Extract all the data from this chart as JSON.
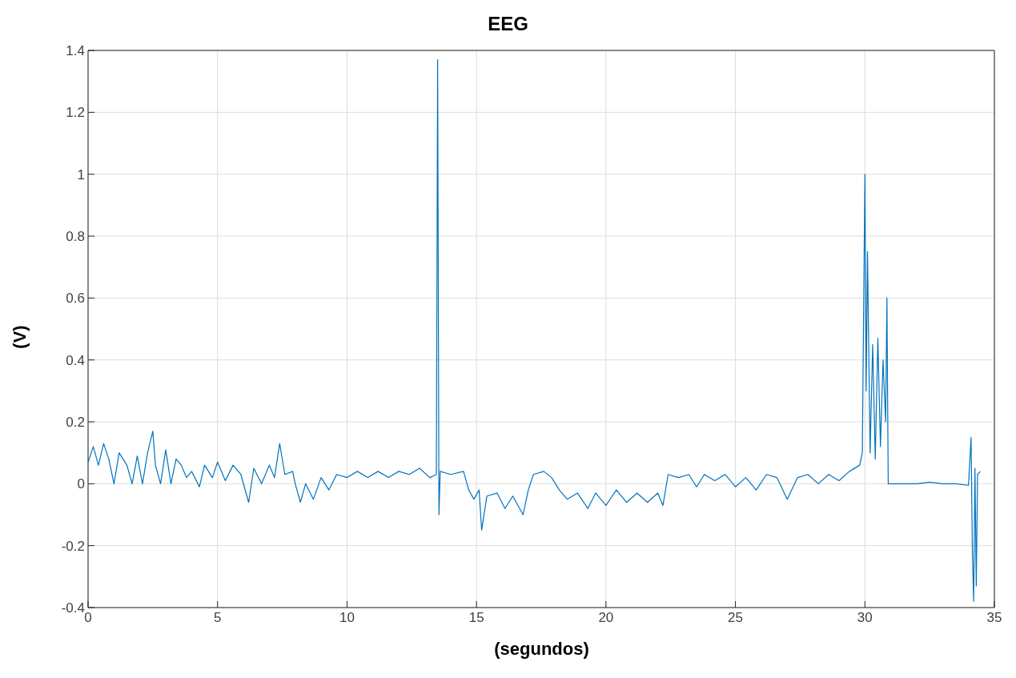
{
  "chart_data": {
    "type": "line",
    "title": "EEG",
    "xlabel": "(segundos)",
    "ylabel": "(V)",
    "x": [
      0,
      0.2,
      0.4,
      0.6,
      0.8,
      1.0,
      1.2,
      1.5,
      1.7,
      1.9,
      2.1,
      2.3,
      2.5,
      2.6,
      2.8,
      3.0,
      3.2,
      3.4,
      3.6,
      3.8,
      4.0,
      4.3,
      4.5,
      4.8,
      5.0,
      5.3,
      5.6,
      5.9,
      6.2,
      6.4,
      6.7,
      7.0,
      7.2,
      7.4,
      7.6,
      7.9,
      8.0,
      8.2,
      8.4,
      8.7,
      9.0,
      9.3,
      9.6,
      10.0,
      10.4,
      10.8,
      11.2,
      11.6,
      12.0,
      12.4,
      12.8,
      13.2,
      13.45,
      13.5,
      13.55,
      13.6,
      14.0,
      14.5,
      14.7,
      14.9,
      15.1,
      15.2,
      15.4,
      15.8,
      16.1,
      16.4,
      16.8,
      17.0,
      17.2,
      17.6,
      17.9,
      18.2,
      18.5,
      18.9,
      19.3,
      19.6,
      20.0,
      20.4,
      20.8,
      21.2,
      21.6,
      22.0,
      22.2,
      22.4,
      22.8,
      23.2,
      23.5,
      23.8,
      24.2,
      24.6,
      25.0,
      25.4,
      25.8,
      26.2,
      26.6,
      27.0,
      27.4,
      27.8,
      28.2,
      28.6,
      29.0,
      29.4,
      29.8,
      29.9,
      30.0,
      30.05,
      30.1,
      30.2,
      30.3,
      30.4,
      30.5,
      30.6,
      30.7,
      30.8,
      30.85,
      30.9,
      31.5,
      32.0,
      32.5,
      33.0,
      33.5,
      34.0,
      34.1,
      34.15,
      34.2,
      34.25,
      34.3,
      34.35,
      34.45
    ],
    "series": [
      {
        "color": "#0072bd",
        "values": [
          0.07,
          0.12,
          0.06,
          0.13,
          0.08,
          0.0,
          0.1,
          0.06,
          0.0,
          0.09,
          0.0,
          0.1,
          0.17,
          0.06,
          0.0,
          0.11,
          0.0,
          0.08,
          0.06,
          0.02,
          0.04,
          -0.01,
          0.06,
          0.02,
          0.07,
          0.01,
          0.06,
          0.03,
          -0.06,
          0.05,
          0.0,
          0.06,
          0.02,
          0.13,
          0.03,
          0.04,
          0.0,
          -0.06,
          0.0,
          -0.05,
          0.02,
          -0.02,
          0.03,
          0.02,
          0.04,
          0.02,
          0.04,
          0.02,
          0.04,
          0.03,
          0.05,
          0.02,
          0.03,
          1.37,
          -0.1,
          0.04,
          0.03,
          0.04,
          -0.02,
          -0.05,
          -0.02,
          -0.15,
          -0.04,
          -0.03,
          -0.08,
          -0.04,
          -0.1,
          -0.02,
          0.03,
          0.04,
          0.02,
          -0.02,
          -0.05,
          -0.03,
          -0.08,
          -0.03,
          -0.07,
          -0.02,
          -0.06,
          -0.03,
          -0.06,
          -0.03,
          -0.07,
          0.03,
          0.02,
          0.03,
          -0.01,
          0.03,
          0.01,
          0.03,
          -0.01,
          0.02,
          -0.02,
          0.03,
          0.02,
          -0.05,
          0.02,
          0.03,
          0.0,
          0.03,
          0.01,
          0.04,
          0.06,
          0.1,
          1.0,
          0.3,
          0.75,
          0.1,
          0.45,
          0.08,
          0.47,
          0.12,
          0.4,
          0.2,
          0.6,
          0.0,
          0.0,
          0.0,
          0.005,
          0.0,
          0.0,
          -0.005,
          0.15,
          -0.22,
          -0.38,
          0.05,
          -0.33,
          0.03,
          0.04
        ]
      }
    ],
    "xlim": [
      0,
      35
    ],
    "xticks": [
      0,
      5,
      10,
      15,
      20,
      25,
      30,
      35
    ],
    "ylim": [
      -0.4,
      1.4
    ],
    "yticks": [
      -0.4,
      -0.2,
      0,
      0.2,
      0.4,
      0.6,
      0.8,
      1,
      1.2,
      1.4
    ],
    "grid": true,
    "marker": "none",
    "line_style": "solid",
    "legend": false
  }
}
